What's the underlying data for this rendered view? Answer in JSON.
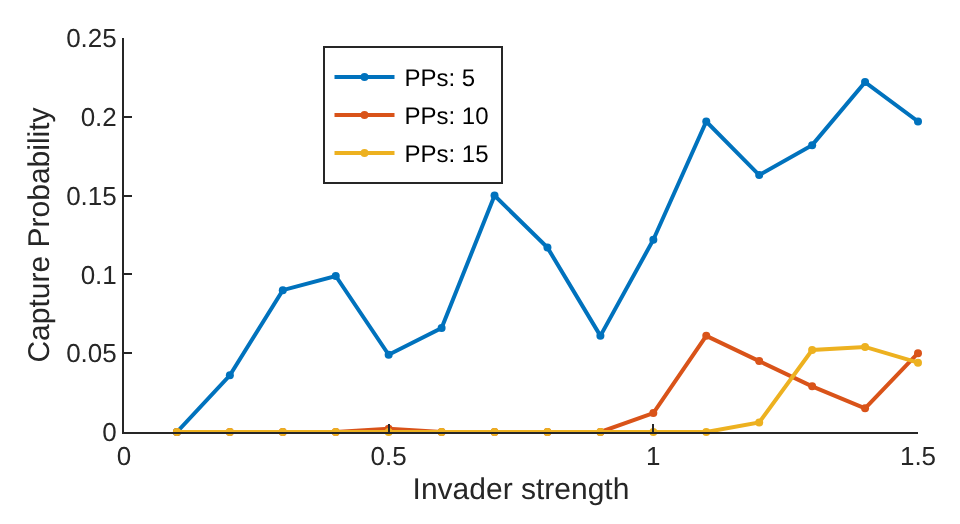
{
  "chart_data": {
    "type": "line",
    "xlabel": "Invader strength",
    "ylabel": "Capture Probability",
    "x": [
      0.1,
      0.2,
      0.3,
      0.4,
      0.5,
      0.6,
      0.7,
      0.8,
      0.9,
      1.0,
      1.1,
      1.2,
      1.3,
      1.4,
      1.5
    ],
    "series": [
      {
        "name": "PPs: 5",
        "color": "#0072bd",
        "values": [
          0,
          0.036,
          0.09,
          0.099,
          0.049,
          0.066,
          0.15,
          0.117,
          0.061,
          0.122,
          0.197,
          0.163,
          0.182,
          0.222,
          0.197
        ]
      },
      {
        "name": "PPs: 10",
        "color": "#d95319",
        "values": [
          0,
          0,
          0,
          0,
          0.002,
          0,
          0,
          0,
          0,
          0.012,
          0.061,
          0.045,
          0.029,
          0.015,
          0.05
        ]
      },
      {
        "name": "PPs: 15",
        "color": "#edb120",
        "values": [
          0,
          0,
          0,
          0,
          0,
          0,
          0,
          0,
          0,
          0,
          0,
          0.006,
          0.052,
          0.054,
          0.044
        ]
      }
    ],
    "xlim": [
      0,
      1.5
    ],
    "xticks": [
      0,
      0.5,
      1,
      1.5
    ],
    "ylim": [
      0,
      0.25
    ],
    "yticks": [
      0,
      0.05,
      0.1,
      0.15,
      0.2,
      0.25
    ],
    "legend": "top left",
    "marker": "circle",
    "line_style": "solid"
  }
}
